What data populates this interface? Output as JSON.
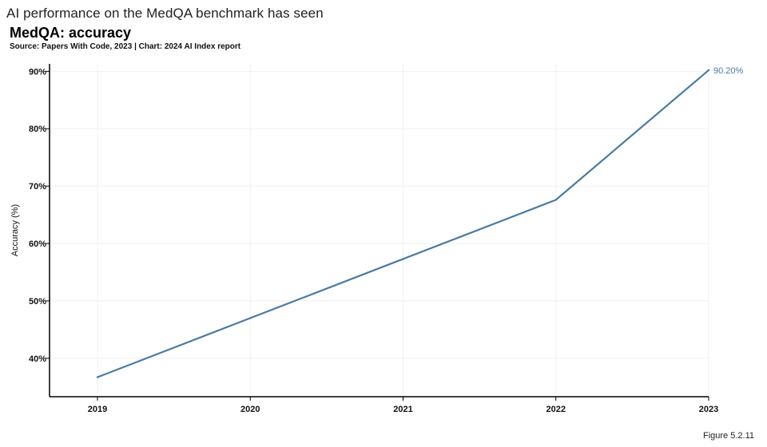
{
  "page": {
    "heading": "AI performance on the MedQA benchmark has seen",
    "figure_label": "Figure 5.2.11"
  },
  "chart_data": {
    "type": "line",
    "title": "MedQA: accuracy",
    "subtitle": "Source: Papers With Code, 2023 | Chart: 2024 AI Index report",
    "xlabel": "",
    "ylabel": "Accuracy (%)",
    "x": [
      "2019",
      "2020",
      "2021",
      "2022",
      "2023"
    ],
    "series": [
      {
        "values": [
          36.7,
          47.0,
          57.3,
          67.6,
          90.2
        ],
        "color": "#4a7aa3"
      }
    ],
    "yticks": [
      40,
      50,
      60,
      70,
      80,
      90
    ],
    "ytick_labels": [
      "40%",
      "50%",
      "60%",
      "70%",
      "80%",
      "90%"
    ],
    "ylim": [
      33.3,
      91.3
    ],
    "annotations": [
      {
        "x": "2023",
        "y": 90.2,
        "text": "90.20%"
      }
    ],
    "grid": true,
    "legend": "none"
  }
}
